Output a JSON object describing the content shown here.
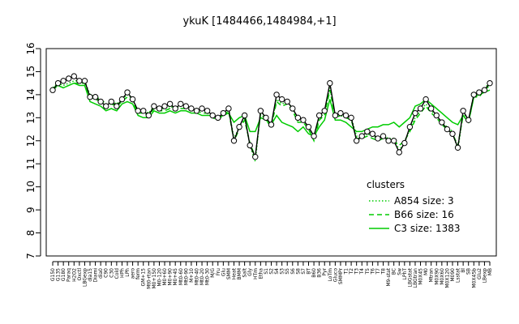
{
  "chart_data": {
    "type": "line",
    "title": "ykuK [1484466,1484984,+1]",
    "xlabel": "",
    "ylabel": "",
    "ylim": [
      7,
      16
    ],
    "yticks": [
      7,
      8,
      9,
      10,
      11,
      12,
      13,
      14,
      15,
      16
    ],
    "grid": false,
    "legend_position": "right",
    "legend_title": "clusters",
    "x_tick_labels": [
      "G150",
      "G135",
      "G180",
      "Paraq",
      "H2O2",
      "Oxctl",
      "LBGexp",
      "dia15",
      "Diami",
      "dia0",
      "C90",
      "C30",
      "Cold",
      "HPh",
      "LPh",
      "aero",
      "ferm",
      "GM+15",
      "Mt0-rtan",
      "M0+150",
      "M0-120",
      "M0+60",
      "M0+90",
      "M0+45",
      "Mt0-60",
      "Mt0-90",
      "M+10",
      "Mt0-40",
      "Mt0-20",
      "Mt0-30",
      "M/G",
      "Fru",
      "Glu",
      "SMM",
      "Heat",
      "BMM",
      "Salt",
      "Gly",
      "HTm",
      "Etha",
      "S1",
      "S2",
      "S4",
      "S3",
      "S5",
      "S6",
      "S8",
      "S7",
      "BT",
      "B60",
      "B36",
      "Pyr",
      "LoTm",
      "Gluco",
      "SMMPr",
      "T1",
      "T2",
      "T3",
      "T4",
      "T5",
      "T6",
      "T7",
      "T8",
      "M9-stat",
      "BC",
      "Sw",
      "LPhT",
      "LBGstat",
      "LBGtran",
      "M0X45",
      "M0",
      "Mtran",
      "M0X90",
      "M0X60",
      "M0X120",
      "M090",
      "Lsstat",
      "Bl",
      "SB",
      "M0X45b",
      "Glu2",
      "LBexp",
      "MB"
    ],
    "series": [
      {
        "name": "A854 size: 3",
        "style": "dotted",
        "color": "#00cc00",
        "values": [
          14.3,
          14.5,
          14.4,
          14.5,
          14.6,
          14.6,
          14.6,
          14.0,
          13.9,
          13.8,
          13.6,
          13.7,
          13.6,
          13.8,
          14.0,
          13.8,
          13.3,
          13.3,
          13.2,
          13.5,
          13.4,
          13.4,
          13.5,
          13.4,
          13.5,
          13.5,
          13.4,
          13.4,
          13.3,
          13.3,
          13.1,
          13.0,
          13.2,
          13.4,
          12.1,
          12.6,
          13.0,
          11.8,
          11.1,
          13.3,
          13.0,
          12.7,
          13.8,
          13.6,
          13.7,
          13.4,
          12.9,
          12.9,
          12.6,
          12.1,
          13.0,
          13.2,
          14.3,
          13.1,
          13.2,
          13.1,
          13.0,
          12.2,
          12.2,
          12.3,
          12.2,
          12.1,
          12.2,
          12.1,
          12.1,
          11.6,
          11.9,
          12.5,
          13.0,
          13.3,
          13.6,
          13.3,
          13.1,
          12.8,
          12.6,
          12.4,
          11.6,
          13.2,
          12.9,
          14.0,
          14.0,
          14.3,
          14.5
        ]
      },
      {
        "name": "B66 size: 16",
        "style": "dashed",
        "color": "#00cc00",
        "values": [
          14.2,
          14.4,
          14.3,
          14.4,
          14.5,
          14.5,
          14.5,
          13.9,
          13.8,
          13.7,
          13.5,
          13.6,
          13.5,
          13.7,
          13.9,
          13.7,
          13.2,
          13.2,
          13.1,
          13.4,
          13.3,
          13.3,
          13.4,
          13.3,
          13.4,
          13.4,
          13.3,
          13.3,
          13.2,
          13.2,
          13.0,
          12.9,
          13.1,
          13.3,
          12.0,
          12.5,
          12.9,
          11.9,
          11.3,
          13.2,
          12.9,
          12.6,
          13.7,
          13.5,
          13.6,
          13.3,
          12.8,
          12.8,
          12.5,
          12.0,
          12.9,
          13.1,
          14.2,
          13.0,
          13.1,
          13.0,
          12.9,
          12.1,
          12.1,
          12.2,
          12.1,
          12.0,
          12.1,
          12.0,
          12.0,
          11.8,
          12.0,
          12.4,
          12.9,
          13.2,
          13.5,
          13.2,
          13.0,
          12.7,
          12.5,
          12.3,
          11.8,
          13.1,
          12.8,
          13.9,
          13.9,
          14.2,
          14.4
        ]
      },
      {
        "name": "C3 size: 1383",
        "style": "solid",
        "color": "#00cc00",
        "values": [
          14.3,
          14.4,
          14.3,
          14.4,
          14.5,
          14.4,
          14.4,
          13.7,
          13.6,
          13.5,
          13.3,
          13.4,
          13.3,
          13.6,
          13.7,
          13.6,
          13.1,
          13.0,
          13.0,
          13.3,
          13.2,
          13.2,
          13.3,
          13.2,
          13.3,
          13.3,
          13.2,
          13.2,
          13.1,
          13.1,
          13.1,
          13.0,
          13.1,
          13.2,
          12.8,
          13.0,
          13.1,
          12.4,
          12.4,
          13.0,
          12.9,
          12.7,
          13.1,
          12.8,
          12.7,
          12.6,
          12.4,
          12.6,
          12.3,
          12.2,
          12.6,
          12.9,
          13.8,
          12.9,
          12.9,
          12.8,
          12.6,
          12.4,
          12.4,
          12.5,
          12.6,
          12.6,
          12.7,
          12.7,
          12.8,
          12.6,
          12.8,
          13.0,
          13.5,
          13.6,
          13.8,
          13.6,
          13.4,
          13.2,
          13.0,
          12.8,
          12.7,
          13.1,
          12.8,
          13.9,
          14.0,
          14.1,
          14.2
        ]
      }
    ],
    "points": [
      14.2,
      14.5,
      14.6,
      14.7,
      14.8,
      14.6,
      14.6,
      13.9,
      13.9,
      13.7,
      13.5,
      13.7,
      13.5,
      13.8,
      14.1,
      13.8,
      13.3,
      13.3,
      13.1,
      13.5,
      13.4,
      13.5,
      13.6,
      13.4,
      13.6,
      13.5,
      13.4,
      13.3,
      13.4,
      13.3,
      13.1,
      13.0,
      13.2,
      13.4,
      12.0,
      12.6,
      13.1,
      11.8,
      11.3,
      13.3,
      13.0,
      12.7,
      14.0,
      13.8,
      13.7,
      13.4,
      13.0,
      12.9,
      12.6,
      12.2,
      13.1,
      13.3,
      14.5,
      13.1,
      13.2,
      13.1,
      13.0,
      12.0,
      12.2,
      12.4,
      12.3,
      12.1,
      12.2,
      12.0,
      12.0,
      11.5,
      11.9,
      12.6,
      13.2,
      13.4,
      13.8,
      13.4,
      13.1,
      12.8,
      12.5,
      12.3,
      11.7,
      13.3,
      12.9,
      14.0,
      14.1,
      14.2,
      14.5
    ]
  }
}
